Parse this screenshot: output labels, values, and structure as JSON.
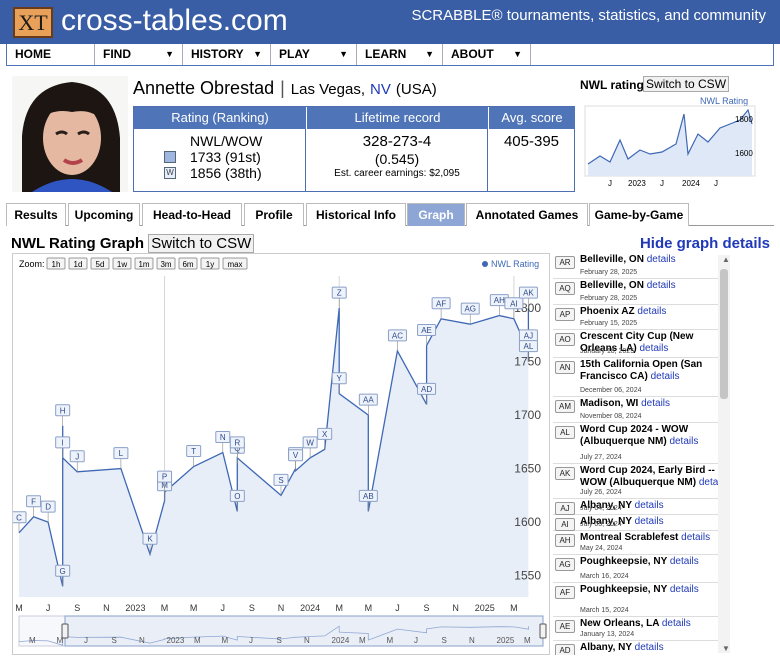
{
  "header": {
    "logo": "XT",
    "site_name": "cross-tables.com",
    "tagline": "SCRABBLE® tournaments, statistics, and community"
  },
  "nav": [
    {
      "label": "HOME"
    },
    {
      "label": "FIND"
    },
    {
      "label": "HISTORY"
    },
    {
      "label": "PLAY"
    },
    {
      "label": "LEARN"
    },
    {
      "label": "ABOUT"
    }
  ],
  "player": {
    "name": "Annette Obrestad",
    "city": "Las Vegas,",
    "state": "NV",
    "country": "(USA)"
  },
  "ratings": {
    "col1_header": "Rating (Ranking)",
    "col2_header": "Lifetime record",
    "col3_header": "Avg. score",
    "lexicon": "NWL/WOW",
    "rating1": "1733 (91st)",
    "rating2": "1856 (38th)",
    "record": "328-273-4",
    "record_pct": "(0.545)",
    "earnings": "Est. career earnings: $2,095",
    "avg_score": "405-395"
  },
  "mini_chart": {
    "title": "NWL rating",
    "switch_label": "Switch to CSW",
    "legend": "NWL Rating",
    "y_ticks": [
      "1800",
      "1600"
    ],
    "x_ticks": [
      "J",
      "2023",
      "J",
      "2024",
      "J"
    ]
  },
  "tabs": [
    {
      "label": "Results"
    },
    {
      "label": "Upcoming"
    },
    {
      "label": "Head-to-Head"
    },
    {
      "label": "Profile"
    },
    {
      "label": "Historical Info"
    },
    {
      "label": "Graph"
    },
    {
      "label": "Annotated Games"
    },
    {
      "label": "Game-by-Game"
    }
  ],
  "graph": {
    "title": "NWL Rating Graph",
    "switch_label": "Switch to CSW",
    "hide_label": "Hide graph details",
    "zoom_label": "Zoom:",
    "zoom_buttons": [
      "1h",
      "1d",
      "5d",
      "1w",
      "1m",
      "3m",
      "6m",
      "1y",
      "max"
    ],
    "legend": "NWL Rating",
    "x_labels": [
      "M",
      "J",
      "S",
      "N",
      "2023",
      "M",
      "M",
      "J",
      "S",
      "N",
      "2024",
      "M",
      "M",
      "J",
      "S",
      "N",
      "2025",
      "M"
    ],
    "nav_labels": [
      "M",
      "M",
      "J",
      "S",
      "N",
      "2023",
      "M",
      "M",
      "J",
      "S",
      "N",
      "2024",
      "M",
      "M",
      "J",
      "S",
      "N",
      "2025",
      "M"
    ]
  },
  "chart_data": {
    "type": "line",
    "title": "",
    "ylabel": "",
    "series": [
      {
        "name": "NWL Rating",
        "x": [
          "2022-03",
          "2022-04",
          "2022-05",
          "2022-06",
          "2022-06",
          "2022-06",
          "2022-07",
          "2022-10",
          "2022-12",
          "2023-01",
          "2023-01",
          "2023-03",
          "2023-05",
          "2023-06",
          "2023-06",
          "2023-06",
          "2023-09",
          "2023-10",
          "2023-10",
          "2023-11",
          "2023-12",
          "2024-01",
          "2024-01",
          "2024-03",
          "2024-03",
          "2024-05",
          "2024-07",
          "2024-07",
          "2024-08",
          "2024-10",
          "2024-12",
          "2025-01",
          "2025-02",
          "2025-02",
          "2025-02"
        ],
        "y": [
          1590,
          1605,
          1600,
          1540,
          1690,
          1660,
          1647,
          1650,
          1570,
          1620,
          1628,
          1652,
          1665,
          1610,
          1655,
          1660,
          1625,
          1650,
          1648,
          1660,
          1668,
          1800,
          1720,
          1700,
          1610,
          1760,
          1710,
          1765,
          1790,
          1785,
          1793,
          1790,
          1760,
          1800,
          1750
        ]
      }
    ],
    "y_ticks": [
      1550,
      1600,
      1650,
      1700,
      1750,
      1800
    ],
    "ylim": [
      1530,
      1830
    ]
  },
  "events": [
    {
      "code": "AR",
      "name": "Belleville, ON",
      "link": "details",
      "date": "February 28, 2025"
    },
    {
      "code": "AQ",
      "name": "Belleville, ON",
      "link": "details",
      "date": "February 28, 2025"
    },
    {
      "code": "AP",
      "name": "Phoenix AZ",
      "link": "details",
      "date": "February 15, 2025"
    },
    {
      "code": "AO",
      "name": "Crescent City Cup (New Orleans LA)",
      "link": "details",
      "date": "January 18, 2025"
    },
    {
      "code": "AN",
      "name": "15th California Open (San Francisco CA)",
      "link": "details",
      "date": "December 06, 2024"
    },
    {
      "code": "AM",
      "name": "Madison, WI",
      "link": "details",
      "date": "November 08, 2024"
    },
    {
      "code": "AL",
      "name": "Word Cup 2024 - WOW (Albuquerque NM)",
      "link": "details",
      "date": "July 27, 2024"
    },
    {
      "code": "AK",
      "name": "Word Cup 2024, Early Bird -- WOW (Albuquerque NM)",
      "link": "details",
      "date": "July 26, 2024"
    },
    {
      "code": "AJ",
      "name": "Albany, NY",
      "link": "details",
      "date": "July 04, 2024"
    },
    {
      "code": "AI",
      "name": "Albany, NY",
      "link": "details",
      "date": "July 03, 2024"
    },
    {
      "code": "AH",
      "name": "Montreal Scrablefest",
      "link": "details",
      "date": "May 24, 2024"
    },
    {
      "code": "AG",
      "name": "Poughkeepsie, NY",
      "link": "details",
      "date": "March 16, 2024"
    },
    {
      "code": "AF",
      "name": "Poughkeepsie, NY",
      "link": "details",
      "date": "March 15, 2024"
    },
    {
      "code": "AE",
      "name": "New Orleans, LA",
      "link": "details",
      "date": "January 13, 2024"
    },
    {
      "code": "AD",
      "name": "Albany, NY",
      "link": "details",
      "date": ""
    }
  ],
  "colors": {
    "header_blue": "#3a5ea5",
    "accent_blue": "#4f75b8",
    "link_blue": "#1f39b8",
    "series": "#3e68b5"
  }
}
